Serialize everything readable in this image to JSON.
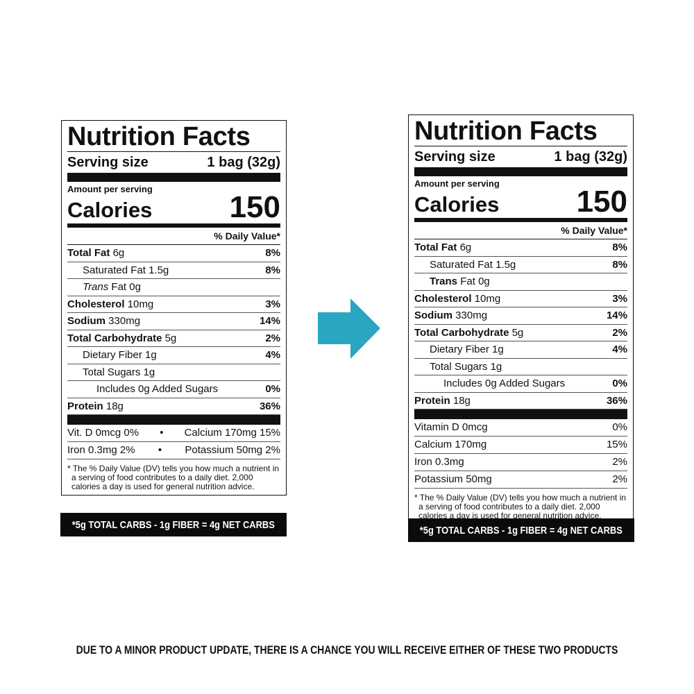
{
  "labels": [
    {
      "title": "Nutrition Facts",
      "serving_label": "Serving size",
      "serving_value": "1 bag (32g)",
      "amount_per_serving": "Amount per serving",
      "calories_label": "Calories",
      "calories_value": "150",
      "dv_header": "% Daily Value*",
      "rows": [
        {
          "name": "Total Fat",
          "amount": "6g",
          "dv": "8%"
        },
        {
          "name": "Saturated Fat",
          "amount": "1.5g",
          "dv": "8%"
        },
        {
          "name_prefix": "Trans",
          "name": "Fat",
          "amount": "0g"
        },
        {
          "name": "Cholesterol",
          "amount": "10mg",
          "dv": "3%"
        },
        {
          "name": "Sodium",
          "amount": "330mg",
          "dv": "14%"
        },
        {
          "name": "Total Carbohydrate",
          "amount": "5g",
          "dv": "2%"
        },
        {
          "name": "Dietary Fiber",
          "amount": "1g",
          "dv": "4%"
        },
        {
          "name": "Total Sugars",
          "amount": "1g"
        },
        {
          "name": "Includes 0g Added Sugars",
          "dv": "0%"
        },
        {
          "name": "Protein",
          "amount": "18g",
          "dv": "36%"
        }
      ],
      "vitamin_pairs": [
        [
          "Vit. D 0mcg 0%",
          "Calcium 170mg 15%"
        ],
        [
          "Iron 0.3mg 2%",
          "Potassium 50mg 2%"
        ]
      ],
      "footnote": "* The % Daily Value (DV) tells you how much a nutrient in a serving of food contributes to a daily diet. 2,000 calories a day is used for general nutrition advice.",
      "net_carbs": "*5g TOTAL CARBS - 1g FIBER = 4g NET CARBS"
    },
    {
      "title": "Nutrition Facts",
      "serving_label": "Serving size",
      "serving_value": "1 bag (32g)",
      "amount_per_serving": "Amount per serving",
      "calories_label": "Calories",
      "calories_value": "150",
      "dv_header": "% Daily Value*",
      "rows": [
        {
          "name": "Total Fat",
          "amount": "6g",
          "dv": "8%"
        },
        {
          "name": "Saturated Fat",
          "amount": "1.5g",
          "dv": "8%"
        },
        {
          "name_prefix": "Trans",
          "name": "Fat",
          "amount": "0g"
        },
        {
          "name": "Cholesterol",
          "amount": "10mg",
          "dv": "3%"
        },
        {
          "name": "Sodium",
          "amount": "330mg",
          "dv": "14%"
        },
        {
          "name": "Total Carbohydrate",
          "amount": "5g",
          "dv": "2%"
        },
        {
          "name": "Dietary Fiber",
          "amount": "1g",
          "dv": "4%"
        },
        {
          "name": "Total Sugars",
          "amount": "1g"
        },
        {
          "name": "Includes 0g Added Sugars",
          "dv": "0%"
        },
        {
          "name": "Protein",
          "amount": "18g",
          "dv": "36%"
        }
      ],
      "vitamins": [
        {
          "name": "Vitamin D 0mcg",
          "dv": "0%"
        },
        {
          "name": "Calcium 170mg",
          "dv": "15%"
        },
        {
          "name": "Iron 0.3mg",
          "dv": "2%"
        },
        {
          "name": "Potassium 50mg",
          "dv": "2%"
        }
      ],
      "footnote": "* The % Daily Value (DV) tells you how much a nutrient in a serving of food contributes to a daily diet. 2,000 calories a day is used for general nutrition advice.",
      "net_carbs": "*5g TOTAL CARBS - 1g FIBER = 4g NET CARBS"
    }
  ],
  "notice": "DUE TO A MINOR PRODUCT UPDATE, THERE IS A CHANCE YOU WILL RECEIVE EITHER OF THESE TWO PRODUCTS"
}
